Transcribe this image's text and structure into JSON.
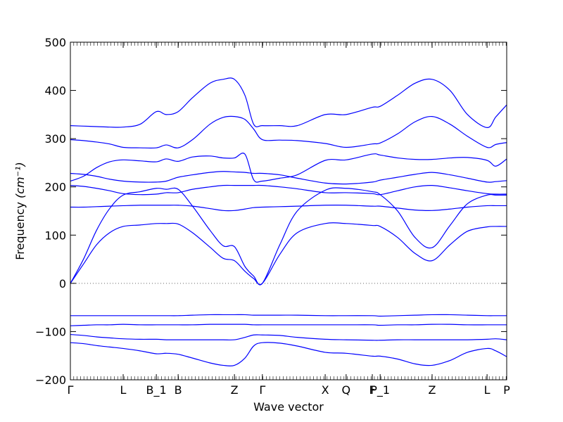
{
  "chart_data": {
    "type": "line",
    "title": "",
    "xlabel": "Wave vector",
    "ylabel": "Frequency",
    "ylabel_unit": "(cm⁻¹)",
    "ylim": [
      -200,
      500
    ],
    "yticks": [
      -200,
      -100,
      0,
      100,
      200,
      300,
      400,
      500
    ],
    "xlim": [
      0,
      1.0
    ],
    "zero_line": true,
    "line_color": "#0000ff",
    "xticks": [
      {
        "pos": 0.0,
        "label": "Γ"
      },
      {
        "pos": 0.121,
        "label": "L"
      },
      {
        "pos": 0.197,
        "label": "B_1"
      },
      {
        "pos": 0.247,
        "label": "B"
      },
      {
        "pos": 0.376,
        "label": "Z"
      },
      {
        "pos": 0.44,
        "label": "Γ"
      },
      {
        "pos": 0.584,
        "label": "X"
      },
      {
        "pos": 0.632,
        "label": "Q"
      },
      {
        "pos": 0.692,
        "label": "F"
      },
      {
        "pos": 0.71,
        "label": "P_1"
      },
      {
        "pos": 0.829,
        "label": "Z"
      },
      {
        "pos": 0.955,
        "label": "L"
      },
      {
        "pos": 1.0,
        "label": "P"
      }
    ],
    "x": [
      0,
      0.03,
      0.06,
      0.09,
      0.121,
      0.16,
      0.197,
      0.22,
      0.247,
      0.28,
      0.32,
      0.35,
      0.376,
      0.4,
      0.42,
      0.44,
      0.48,
      0.52,
      0.584,
      0.632,
      0.692,
      0.71,
      0.75,
      0.79,
      0.829,
      0.87,
      0.91,
      0.955,
      0.975,
      1.0
    ],
    "series": [
      {
        "values": [
          327,
          326,
          325,
          324,
          324,
          330,
          356,
          350,
          356,
          385,
          415,
          423,
          423,
          390,
          330,
          327,
          327,
          327,
          350,
          350,
          365,
          367,
          390,
          415,
          423,
          400,
          350,
          323,
          345,
          370
        ]
      },
      {
        "values": [
          298,
          296,
          293,
          289,
          282,
          281,
          281,
          287,
          281,
          298,
          330,
          344,
          346,
          340,
          320,
          298,
          297,
          296,
          290,
          282,
          289,
          291,
          310,
          335,
          346,
          330,
          305,
          282,
          288,
          292
        ]
      },
      {
        "values": [
          212,
          222,
          240,
          252,
          256,
          254,
          252,
          258,
          253,
          262,
          264,
          260,
          260,
          268,
          215,
          212,
          218,
          225,
          255,
          256,
          268,
          266,
          260,
          257,
          257,
          260,
          261,
          255,
          243,
          258
        ]
      },
      {
        "values": [
          228,
          226,
          222,
          216,
          212,
          210,
          210,
          212,
          220,
          225,
          230,
          232,
          231,
          230,
          228,
          228,
          225,
          218,
          208,
          206,
          210,
          214,
          220,
          226,
          230,
          225,
          218,
          210,
          211,
          213
        ]
      },
      {
        "values": [
          203,
          201,
          197,
          192,
          186,
          184,
          185,
          188,
          188,
          195,
          200,
          203,
          203,
          203,
          203,
          203,
          200,
          196,
          188,
          188,
          186,
          184,
          192,
          200,
          203,
          198,
          192,
          186,
          185,
          185
        ]
      },
      {
        "values": [
          0,
          50,
          110,
          155,
          183,
          190,
          197,
          195,
          195,
          160,
          110,
          78,
          76,
          35,
          15,
          0,
          80,
          150,
          193,
          197,
          190,
          184,
          150,
          95,
          74,
          120,
          165,
          183,
          183,
          183
        ]
      },
      {
        "values": [
          158,
          158,
          159,
          160,
          161,
          162,
          162,
          162,
          162,
          160,
          155,
          151,
          151,
          154,
          157,
          158,
          159,
          160,
          162,
          162,
          160,
          160,
          156,
          152,
          151,
          154,
          158,
          161,
          161,
          161
        ]
      },
      {
        "values": [
          0,
          40,
          80,
          105,
          118,
          121,
          124,
          124,
          123,
          105,
          75,
          52,
          47,
          25,
          10,
          0,
          60,
          105,
          124,
          124,
          120,
          118,
          95,
          62,
          47,
          80,
          108,
          117,
          118,
          118
        ]
      },
      {
        "values": [
          -67,
          -67,
          -67,
          -67,
          -67,
          -67,
          -67,
          -67,
          -67,
          -66,
          -65,
          -65,
          -65,
          -65,
          -66,
          -66,
          -66,
          -66,
          -67,
          -67,
          -67,
          -68,
          -67,
          -66,
          -65,
          -65,
          -66,
          -67,
          -67,
          -67
        ]
      },
      {
        "values": [
          -88,
          -87,
          -86,
          -86,
          -85,
          -86,
          -86,
          -86,
          -86,
          -86,
          -85,
          -85,
          -85,
          -85,
          -86,
          -86,
          -86,
          -86,
          -86,
          -86,
          -86,
          -87,
          -86,
          -86,
          -85,
          -85,
          -86,
          -86,
          -86,
          -86
        ]
      },
      {
        "values": [
          -106,
          -108,
          -111,
          -113,
          -115,
          -116,
          -116,
          -117,
          -117,
          -117,
          -117,
          -117,
          -117,
          -112,
          -107,
          -107,
          -108,
          -112,
          -116,
          -117,
          -118,
          -118,
          -117,
          -117,
          -117,
          -117,
          -117,
          -116,
          -115,
          -117
        ]
      },
      {
        "values": [
          -123,
          -125,
          -129,
          -132,
          -135,
          -140,
          -146,
          -145,
          -147,
          -155,
          -165,
          -170,
          -170,
          -155,
          -130,
          -123,
          -124,
          -130,
          -143,
          -145,
          -151,
          -151,
          -157,
          -167,
          -170,
          -160,
          -143,
          -135,
          -140,
          -152
        ]
      }
    ]
  }
}
